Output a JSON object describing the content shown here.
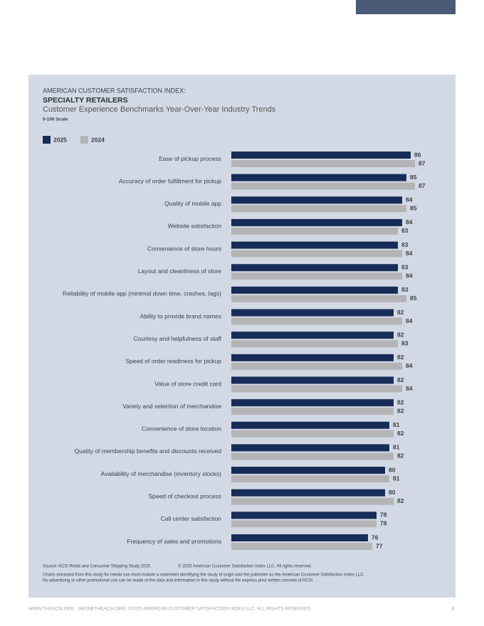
{
  "chart_data": {
    "type": "bar",
    "orientation": "horizontal",
    "supertitle": "AMERICAN CUSTOMER SATISFACTION INDEX:",
    "title": "SPECIALTY RETAILERS",
    "subtitle": "Customer Experience Benchmarks Year-Over-Year Industry Trends",
    "scale_note": "0-100 Scale",
    "categories": [
      "Ease of pickup process",
      "Accuracy of order fulfillment for pickup",
      "Quality of mobile app",
      "Website satisfaction",
      "Convenience of store hours",
      "Layout and cleanliness of store",
      "Reliability of mobile app (minimal down time, crashes, lags)",
      "Ability to provide brand names",
      "Courtesy and helpfulness of staff",
      "Speed of order readiness for pickup",
      "Value of store credit card",
      "Variety and selection of merchandise",
      "Convenience of store location",
      "Quality of membership benefits and discounts received",
      "Availability of merchandise (inventory stocks)",
      "Speed of checkout process",
      "Call center satisfaction",
      "Frequency of sales and promotions"
    ],
    "series": [
      {
        "name": "2025",
        "color": "#172c57",
        "values": [
          86,
          85,
          84,
          84,
          83,
          83,
          83,
          82,
          82,
          82,
          82,
          82,
          81,
          81,
          80,
          80,
          78,
          76
        ]
      },
      {
        "name": "2024",
        "color": "#b4b4b6",
        "values": [
          87,
          87,
          85,
          83,
          84,
          84,
          85,
          84,
          83,
          84,
          84,
          82,
          82,
          82,
          81,
          82,
          78,
          77
        ]
      }
    ],
    "xlim": [
      44,
      90
    ]
  },
  "notes": {
    "source": "Source: ACSI Retail and Consumer Shipping Study 2025.",
    "copyright": "© 2025 American Customer Satisfaction Index LLC. All rights reserved.",
    "disclaimer_1": "Charts extracted from this study for media use must include a statement identifying the study of origin and the publisher as the American Customer Satisfaction Index LLC.",
    "disclaimer_2": "No advertising or other promotional use can be made of the data and information in this study without the express prior written consent of ACSI."
  },
  "footer": {
    "website": "WWW.THEACSI.ORG",
    "email": "INFO@THEACSI.ORG",
    "rights": "©2025 AMERICAN CUSTOMER SATISFACTION INDEX LLC. ALL RIGHTS RESERVED.",
    "page": "8"
  }
}
